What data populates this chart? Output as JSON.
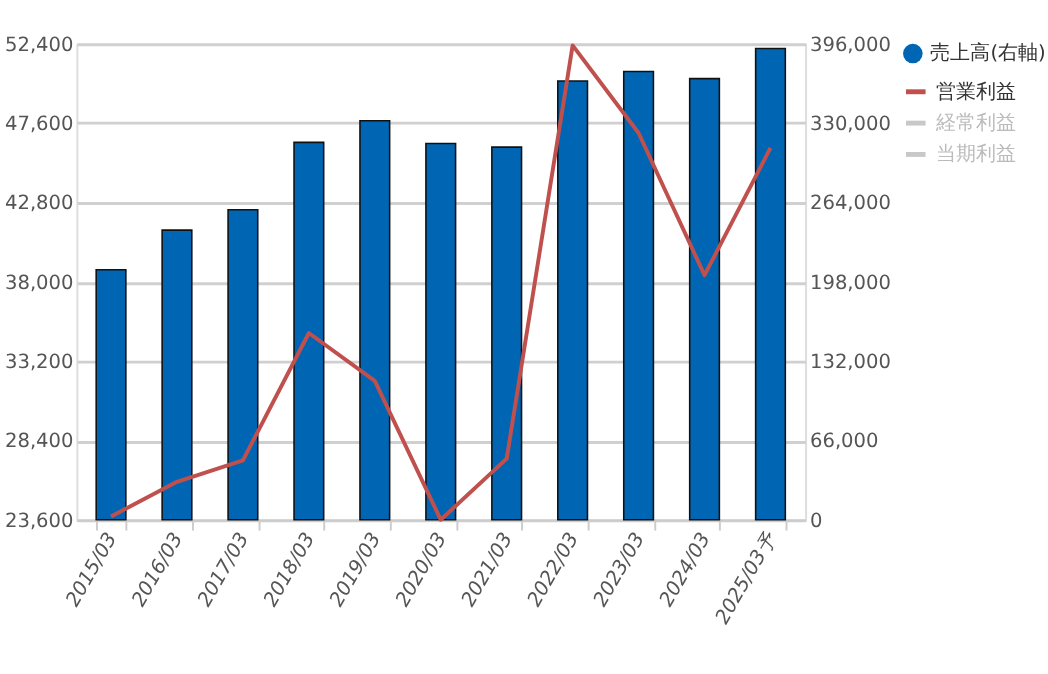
{
  "chart_data": {
    "type": "bar",
    "categories": [
      "2015/03",
      "2016/03",
      "2017/03",
      "2018/03",
      "2019/03",
      "2020/03",
      "2021/03",
      "2022/03",
      "2023/03",
      "2024/03",
      "2025/03予"
    ],
    "series": [
      {
        "name": "売上高(右軸)",
        "axis": "y2",
        "color": "#0066b3",
        "values": [
          208000,
          241000,
          258000,
          314000,
          332000,
          313000,
          310000,
          365000,
          373000,
          367000,
          392000
        ]
      },
      {
        "name": "営業利益",
        "type": "line",
        "color": "#c0504d",
        "values": [
          23800,
          25900,
          27200,
          34900,
          32000,
          23600,
          27300,
          52300,
          47000,
          38400,
          46100
        ]
      },
      {
        "name": "経常利益",
        "type": "line",
        "color": "#c8c8c8",
        "values": [
          null,
          null,
          null,
          null,
          null,
          null,
          null,
          null,
          null,
          null,
          null
        ]
      },
      {
        "name": "当期利益",
        "type": "line",
        "color": "#c8c8c8",
        "values": [
          null,
          null,
          null,
          null,
          null,
          null,
          null,
          null,
          null,
          null,
          null
        ]
      }
    ],
    "ylim": [
      23600,
      52400
    ],
    "yticks": [
      {
        "value": 23600,
        "label": "23,600"
      },
      {
        "value": 28400,
        "label": "28,400"
      },
      {
        "value": 33200,
        "label": "33,200"
      },
      {
        "value": 38000,
        "label": "38,000"
      },
      {
        "value": 42800,
        "label": "42,800"
      },
      {
        "value": 47600,
        "label": "47,600"
      },
      {
        "value": 52400,
        "label": "52,400"
      }
    ],
    "y2lim": [
      0,
      396000
    ],
    "y2ticks": [
      0,
      {
        "value": 66000,
        "label": "66,000"
      },
      {
        "value": 132000,
        "label": "132,000"
      },
      {
        "value": 198000,
        "label": "198,000"
      },
      {
        "value": 264000,
        "label": "264,000"
      },
      {
        "value": 330000,
        "label": "330,000"
      },
      {
        "value": 396000,
        "label": "396,000"
      }
    ],
    "grid": "y",
    "legend": "right",
    "line_style": "solid",
    "marker": "none"
  }
}
